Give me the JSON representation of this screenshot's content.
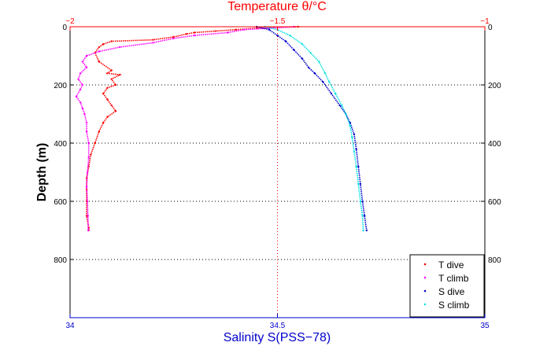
{
  "chart_data": {
    "type": "scatter",
    "title": "Temperature θ/°C",
    "xlabel": "Salinity S(PSS−78)",
    "ylabel": "Depth (m)",
    "x_top": {
      "label": "Temperature θ/°C",
      "range": [
        -2,
        -1
      ],
      "ticks": [
        -2,
        -1.5,
        -1
      ],
      "tick_labels": [
        "−2",
        "−1.5",
        "−1"
      ],
      "color": "#ff0000"
    },
    "x_bottom": {
      "label": "Salinity S(PSS−78)",
      "range": [
        34,
        35
      ],
      "ticks": [
        34,
        34.5,
        35
      ],
      "tick_labels": [
        "34",
        "34.5",
        "35"
      ],
      "color": "#0000cc"
    },
    "y": {
      "label": "Depth (m)",
      "range": [
        1000,
        0
      ],
      "reversed": true,
      "ticks": [
        0,
        200,
        400,
        600,
        800
      ],
      "tick_labels": [
        "0",
        "200",
        "400",
        "600",
        "800"
      ]
    },
    "grid": "dotted",
    "legend_position": "bottom-right",
    "series": [
      {
        "name": "T dive",
        "axis": "temperature",
        "color": "#ff0000",
        "points": [
          [
            -1.45,
            0
          ],
          [
            -1.55,
            5
          ],
          [
            -1.6,
            10
          ],
          [
            -1.65,
            15
          ],
          [
            -1.7,
            20
          ],
          [
            -1.72,
            25
          ],
          [
            -1.75,
            35
          ],
          [
            -1.8,
            45
          ],
          [
            -1.9,
            50
          ],
          [
            -1.92,
            60
          ],
          [
            -1.93,
            70
          ],
          [
            -1.94,
            90
          ],
          [
            -1.93,
            120
          ],
          [
            -1.9,
            150
          ],
          [
            -1.91,
            160
          ],
          [
            -1.88,
            165
          ],
          [
            -1.9,
            180
          ],
          [
            -1.89,
            200
          ],
          [
            -1.91,
            210
          ],
          [
            -1.92,
            230
          ],
          [
            -1.91,
            250
          ],
          [
            -1.9,
            270
          ],
          [
            -1.89,
            290
          ],
          [
            -1.91,
            310
          ],
          [
            -1.92,
            330
          ],
          [
            -1.93,
            360
          ],
          [
            -1.94,
            400
          ],
          [
            -1.95,
            440
          ],
          [
            -1.955,
            480
          ],
          [
            -1.96,
            520
          ],
          [
            -1.96,
            560
          ],
          [
            -1.96,
            600
          ],
          [
            -1.96,
            650
          ],
          [
            -1.955,
            690
          ],
          [
            -1.955,
            700
          ]
        ]
      },
      {
        "name": "T climb",
        "axis": "temperature",
        "color": "#ff00ff",
        "points": [
          [
            -1.46,
            0
          ],
          [
            -1.52,
            5
          ],
          [
            -1.58,
            10
          ],
          [
            -1.62,
            20
          ],
          [
            -1.7,
            30
          ],
          [
            -1.75,
            40
          ],
          [
            -1.8,
            55
          ],
          [
            -1.88,
            70
          ],
          [
            -1.93,
            85
          ],
          [
            -1.96,
            100
          ],
          [
            -1.97,
            120
          ],
          [
            -1.96,
            140
          ],
          [
            -1.975,
            160
          ],
          [
            -1.98,
            180
          ],
          [
            -1.97,
            200
          ],
          [
            -1.975,
            215
          ],
          [
            -1.985,
            240
          ],
          [
            -1.975,
            260
          ],
          [
            -1.97,
            280
          ],
          [
            -1.965,
            300
          ],
          [
            -1.96,
            330
          ],
          [
            -1.96,
            360
          ],
          [
            -1.955,
            400
          ],
          [
            -1.955,
            450
          ],
          [
            -1.958,
            500
          ],
          [
            -1.96,
            550
          ],
          [
            -1.958,
            600
          ],
          [
            -1.957,
            650
          ],
          [
            -1.956,
            700
          ]
        ]
      },
      {
        "name": "S dive",
        "axis": "salinity",
        "color": "#0000cc",
        "points": [
          [
            34.45,
            0
          ],
          [
            34.48,
            10
          ],
          [
            34.5,
            30
          ],
          [
            34.52,
            50
          ],
          [
            34.54,
            80
          ],
          [
            34.56,
            110
          ],
          [
            34.575,
            140
          ],
          [
            34.59,
            160
          ],
          [
            34.61,
            190
          ],
          [
            34.63,
            230
          ],
          [
            34.65,
            270
          ],
          [
            34.665,
            300
          ],
          [
            34.675,
            330
          ],
          [
            34.685,
            370
          ],
          [
            34.69,
            420
          ],
          [
            34.695,
            480
          ],
          [
            34.7,
            540
          ],
          [
            34.705,
            600
          ],
          [
            34.71,
            650
          ],
          [
            34.715,
            700
          ]
        ]
      },
      {
        "name": "S climb",
        "axis": "salinity",
        "color": "#00e0e0",
        "points": [
          [
            34.47,
            0
          ],
          [
            34.5,
            10
          ],
          [
            34.53,
            30
          ],
          [
            34.56,
            60
          ],
          [
            34.58,
            90
          ],
          [
            34.6,
            120
          ],
          [
            34.615,
            160
          ],
          [
            34.625,
            190
          ],
          [
            34.64,
            230
          ],
          [
            34.655,
            270
          ],
          [
            34.665,
            300
          ],
          [
            34.675,
            340
          ],
          [
            34.68,
            380
          ],
          [
            34.685,
            430
          ],
          [
            34.69,
            480
          ],
          [
            34.695,
            540
          ],
          [
            34.7,
            600
          ],
          [
            34.705,
            650
          ],
          [
            34.707,
            700
          ]
        ]
      }
    ]
  }
}
